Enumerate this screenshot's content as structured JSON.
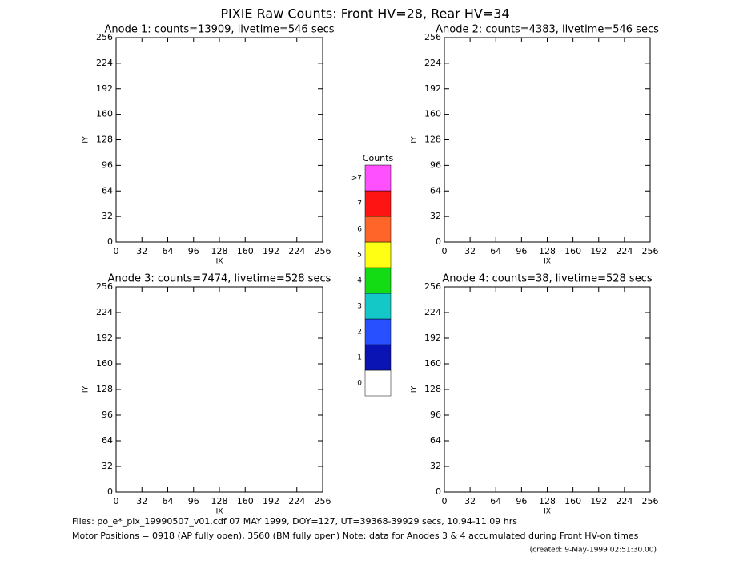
{
  "title": "PIXIE Raw Counts:  Front HV=28, Rear HV=34",
  "chart_data": [
    {
      "type": "scatter",
      "title": "Anode 1: counts=13909, livetime=546 secs",
      "x_label": "IX",
      "y_label": "IY",
      "xlim": [
        0,
        256
      ],
      "ylim": [
        0,
        256
      ],
      "xticks": [
        0,
        32,
        64,
        96,
        128,
        160,
        192,
        224,
        256
      ],
      "yticks": [
        0,
        32,
        64,
        96,
        128,
        160,
        192,
        224,
        256
      ]
    },
    {
      "type": "scatter",
      "title": "Anode 2: counts=4383, livetime=546 secs",
      "x_label": "IX",
      "y_label": "IY",
      "xlim": [
        0,
        256
      ],
      "ylim": [
        0,
        256
      ],
      "xticks": [
        0,
        32,
        64,
        96,
        128,
        160,
        192,
        224,
        256
      ],
      "yticks": [
        0,
        32,
        64,
        96,
        128,
        160,
        192,
        224,
        256
      ]
    },
    {
      "type": "scatter",
      "title": "Anode 3: counts=7474, livetime=528 secs",
      "x_label": "IX",
      "y_label": "IY",
      "xlim": [
        0,
        256
      ],
      "ylim": [
        0,
        256
      ],
      "xticks": [
        0,
        32,
        64,
        96,
        128,
        160,
        192,
        224,
        256
      ],
      "yticks": [
        0,
        32,
        64,
        96,
        128,
        160,
        192,
        224,
        256
      ]
    },
    {
      "type": "scatter",
      "title": "Anode 4: counts=38, livetime=528 secs",
      "x_label": "IX",
      "y_label": "IY",
      "xlim": [
        0,
        256
      ],
      "ylim": [
        0,
        256
      ],
      "xticks": [
        0,
        32,
        64,
        96,
        128,
        160,
        192,
        224,
        256
      ],
      "yticks": [
        0,
        32,
        64,
        96,
        128,
        160,
        192,
        224,
        256
      ]
    }
  ],
  "colorbar": {
    "title": "Counts",
    "labels": [
      "0",
      "1",
      "2",
      "3",
      "4",
      "5",
      "6",
      "7",
      ">7"
    ],
    "colors": [
      "#ffffff",
      "#0a14b4",
      "#2850ff",
      "#14c8c8",
      "#14dc14",
      "#ffff14",
      "#ff6428",
      "#ff1414",
      "#ff50ff"
    ]
  },
  "footer": {
    "files": "Files: po_e*_pix_19990507_v01.cdf    07 MAY 1999, DOY=127, UT=39368-39929 secs, 10.94-11.09 hrs",
    "motor": "Motor Positions = 0918 (AP fully open), 3560 (BM fully open)    Note: data for Anodes 3 & 4 accumulated during Front HV-on times",
    "created": "(created:  9-May-1999 02:51:30.00)"
  }
}
